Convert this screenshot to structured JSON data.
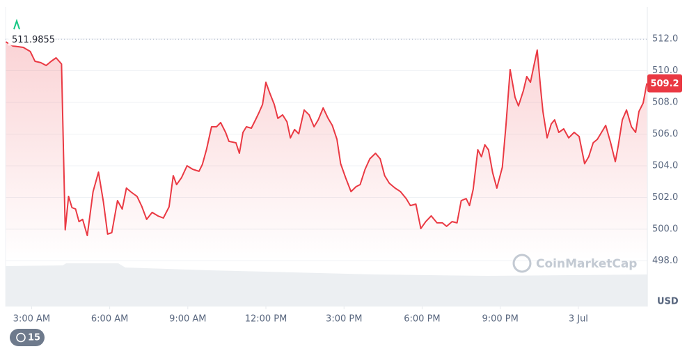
{
  "chart_data": {
    "type": "line",
    "x": [
      2.01,
      2.28,
      2.68,
      2.95,
      3.13,
      3.35,
      3.56,
      3.75,
      3.94,
      4.15,
      4.29,
      4.42,
      4.55,
      4.69,
      4.82,
      4.96,
      5.14,
      5.36,
      5.57,
      5.76,
      5.92,
      6.08,
      6.3,
      6.48,
      6.64,
      6.83,
      7.05,
      7.23,
      7.42,
      7.63,
      7.85,
      8.06,
      8.28,
      8.44,
      8.57,
      8.76,
      8.97,
      9.19,
      9.43,
      9.56,
      9.72,
      9.91,
      10.1,
      10.26,
      10.45,
      10.58,
      10.85,
      10.98,
      11.12,
      11.25,
      11.44,
      11.6,
      11.73,
      11.87,
      12.0,
      12.14,
      12.32,
      12.46,
      12.64,
      12.81,
      12.94,
      13.1,
      13.26,
      13.47,
      13.66,
      13.85,
      14.01,
      14.2,
      14.39,
      14.55,
      14.73,
      14.87,
      15.06,
      15.27,
      15.46,
      15.62,
      15.81,
      15.99,
      16.21,
      16.39,
      16.56,
      16.74,
      16.96,
      17.17,
      17.39,
      17.55,
      17.76,
      17.95,
      18.14,
      18.35,
      18.57,
      18.78,
      18.94,
      19.15,
      19.34,
      19.5,
      19.69,
      19.82,
      19.96,
      20.14,
      20.28,
      20.41,
      20.55,
      20.71,
      20.87,
      21.08,
      21.22,
      21.38,
      21.57,
      21.7,
      21.89,
      22.02,
      22.16,
      22.29,
      22.42,
      22.56,
      22.64,
      22.8,
      22.96,
      23.09,
      23.25,
      23.44,
      23.63,
      23.84,
      24.03,
      24.24,
      24.4,
      24.57,
      24.73,
      24.89,
      25.05,
      25.24,
      25.42,
      25.53,
      25.69,
      25.85,
      26.04,
      26.2,
      26.33,
      26.49,
      26.63
    ],
    "values": [
      511.82,
      511.56,
      511.47,
      511.21,
      510.59,
      510.51,
      510.33,
      510.59,
      510.81,
      510.42,
      499.96,
      502.07,
      501.36,
      501.27,
      500.48,
      500.62,
      499.6,
      502.37,
      503.6,
      501.71,
      499.69,
      499.78,
      501.8,
      501.27,
      502.59,
      502.33,
      502.07,
      501.45,
      500.62,
      501.06,
      500.84,
      500.7,
      501.41,
      503.38,
      502.81,
      503.25,
      504.0,
      503.78,
      503.65,
      504.09,
      505.05,
      506.46,
      506.46,
      506.73,
      506.11,
      505.54,
      505.45,
      504.79,
      506.11,
      506.46,
      506.37,
      506.9,
      507.34,
      507.87,
      509.27,
      508.62,
      507.87,
      506.99,
      507.21,
      506.77,
      505.76,
      506.29,
      506.02,
      507.52,
      507.21,
      506.46,
      506.9,
      507.65,
      506.99,
      506.55,
      505.67,
      504.13,
      503.25,
      502.37,
      502.68,
      502.81,
      503.78,
      504.44,
      504.79,
      504.44,
      503.38,
      502.9,
      502.59,
      502.37,
      501.93,
      501.49,
      501.58,
      500.04,
      500.48,
      500.84,
      500.4,
      500.4,
      500.18,
      500.48,
      500.4,
      501.8,
      501.93,
      501.49,
      502.51,
      505.01,
      504.57,
      505.32,
      505.01,
      503.56,
      502.59,
      503.91,
      506.55,
      510.07,
      508.31,
      507.78,
      508.75,
      509.63,
      509.27,
      510.29,
      511.3,
      508.75,
      507.43,
      505.76,
      506.64,
      506.9,
      506.11,
      506.33,
      505.76,
      506.11,
      505.85,
      504.13,
      504.57,
      505.45,
      505.67,
      506.11,
      506.55,
      505.45,
      504.26,
      505.23,
      506.9,
      507.52,
      506.46,
      506.11,
      507.43,
      507.96,
      509.2
    ],
    "color": "#ea3943",
    "xlim": [
      2.0,
      26.65
    ],
    "ylim": [
      495.12,
      514.02
    ],
    "xticks": [
      {
        "value": 3,
        "label": "3:00 AM"
      },
      {
        "value": 6,
        "label": "6:00 AM"
      },
      {
        "value": 9,
        "label": "9:00 AM"
      },
      {
        "value": 12,
        "label": "12:00 PM"
      },
      {
        "value": 15,
        "label": "3:00 PM"
      },
      {
        "value": 18,
        "label": "6:00 PM"
      },
      {
        "value": 21,
        "label": "9:00 PM"
      },
      {
        "value": 24,
        "label": "3 Jul"
      }
    ],
    "yticks": [
      {
        "value": 498,
        "label": "498.0"
      },
      {
        "value": 500,
        "label": "500.0"
      },
      {
        "value": 502,
        "label": "502.0"
      },
      {
        "value": 504,
        "label": "504.0"
      },
      {
        "value": 506,
        "label": "506.0"
      },
      {
        "value": 508,
        "label": "508.0"
      },
      {
        "value": 510,
        "label": "510.0"
      },
      {
        "value": 512,
        "label": "512.0"
      }
    ],
    "grid": true,
    "y_unit": "USD",
    "reference_value": 511.9855,
    "current_price": 509.2,
    "watermark": "CoinMarketCap",
    "history_badge": "15"
  }
}
